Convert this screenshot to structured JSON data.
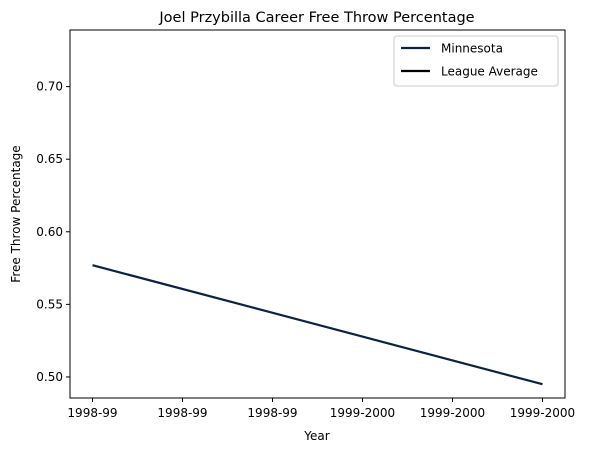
{
  "chart_data": {
    "type": "line",
    "title": "Joel Przybilla Career Free Throw Percentage",
    "xlabel": "Year",
    "ylabel": "Free Throw Percentage",
    "x_tick_labels": [
      "1998-99",
      "1998-99",
      "1998-99",
      "1999-2000",
      "1999-2000",
      "1999-2000"
    ],
    "x_ticks": [
      0,
      0.2,
      0.4,
      0.6,
      0.8,
      1.0
    ],
    "xlim": [
      -0.05,
      1.05
    ],
    "ylim": [
      0.4855,
      0.739
    ],
    "y_ticks": [
      0.5,
      0.55,
      0.6,
      0.65,
      0.7
    ],
    "y_tick_labels": [
      "0.50",
      "0.55",
      "0.60",
      "0.65",
      "0.70"
    ],
    "grid": false,
    "legend_position": "top-right",
    "series": [
      {
        "name": "Minnesota",
        "color": "#0c2340",
        "x": [
          0,
          1
        ],
        "y": [
          0.577,
          0.495
        ]
      },
      {
        "name": "League Average",
        "color": "#000000",
        "x": [],
        "y": []
      }
    ]
  }
}
